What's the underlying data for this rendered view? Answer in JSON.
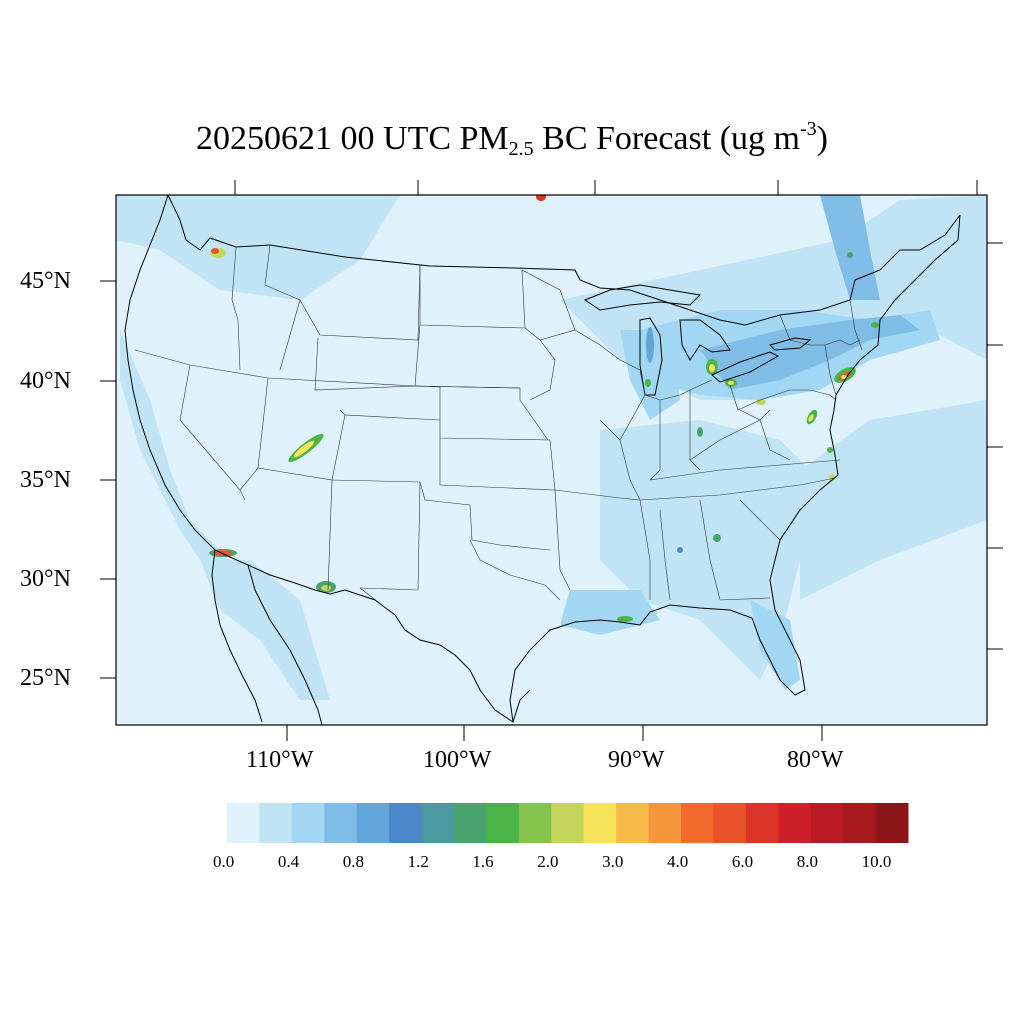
{
  "title": {
    "prefix": "20250621 00 UTC PM",
    "sub": "2.5",
    "middle": " BC Forecast (ug m",
    "sup": "-3",
    "suffix": ")"
  },
  "lat_labels": [
    "45°N",
    "40°N",
    "35°N",
    "30°N",
    "25°N"
  ],
  "lon_labels": [
    "110°W",
    "100°W",
    "90°W",
    "80°W"
  ],
  "colorbar": {
    "colors": [
      "#dff1fa",
      "#c0e4f6",
      "#a1d7f3",
      "#7fbde6",
      "#62a5d8",
      "#4b88c9",
      "#4a9a9f",
      "#48a46d",
      "#4bb447",
      "#83c44f",
      "#c3d55b",
      "#f5e35c",
      "#f7b947",
      "#f5963b",
      "#f26a2c",
      "#e8532b",
      "#dc3427",
      "#cf1f2a",
      "#b81b24",
      "#a8191e",
      "#8b1518"
    ],
    "labels": [
      "0.0",
      "0.4",
      "0.8",
      "1.2",
      "1.6",
      "2.0",
      "3.0",
      "4.0",
      "6.0",
      "8.0",
      "10.0"
    ]
  },
  "map": {
    "background": "#dff1fa",
    "medium": "#c0e4f6",
    "darker": "#a1d7f3"
  }
}
